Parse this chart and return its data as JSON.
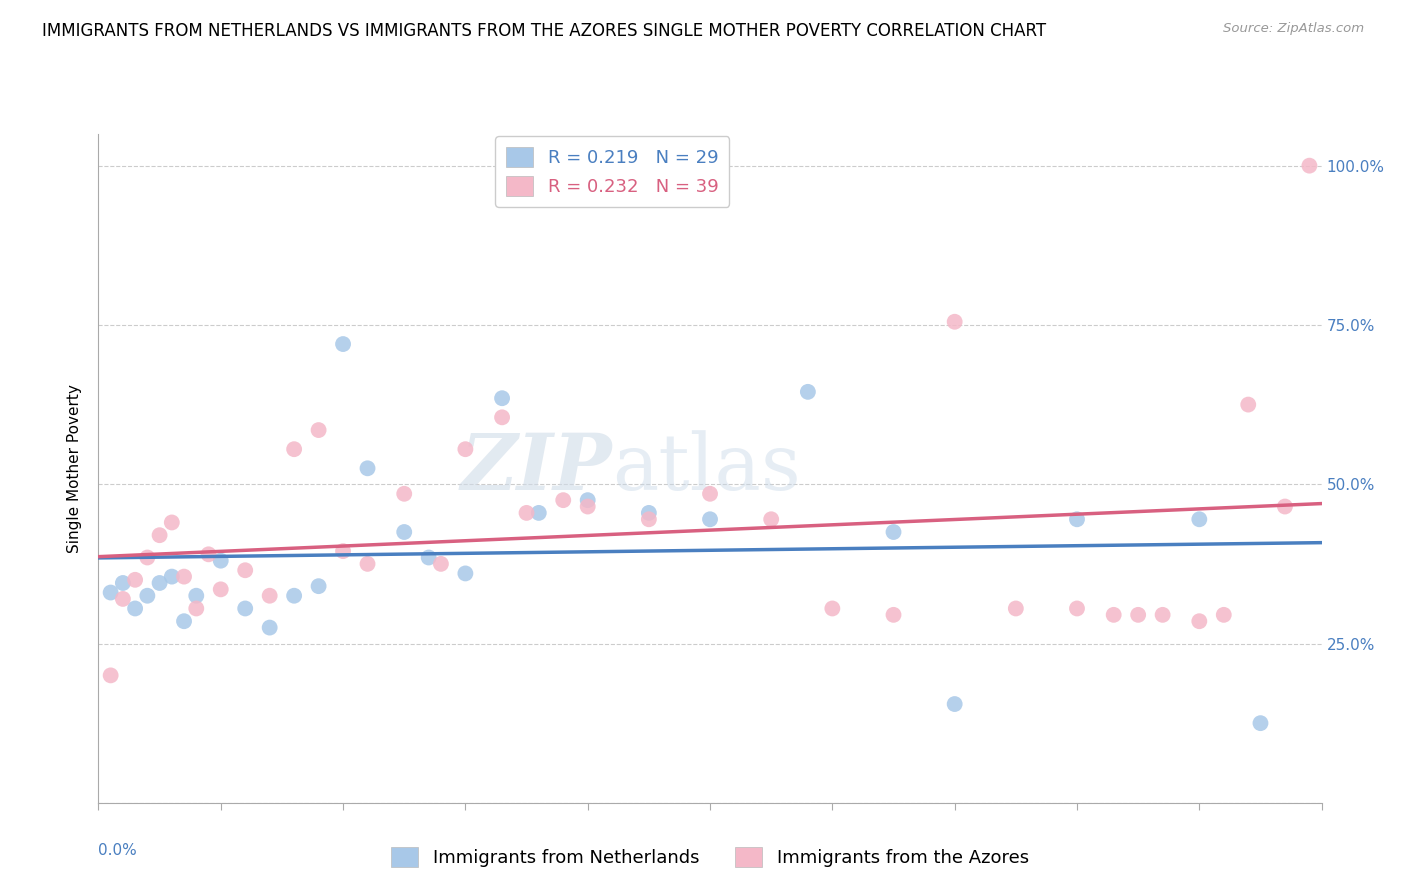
{
  "title": "IMMIGRANTS FROM NETHERLANDS VS IMMIGRANTS FROM THE AZORES SINGLE MOTHER POVERTY CORRELATION CHART",
  "source": "Source: ZipAtlas.com",
  "ylabel": "Single Mother Poverty",
  "legend_netherlands": "Immigrants from Netherlands",
  "legend_azores": "Immigrants from the Azores",
  "R_netherlands": 0.219,
  "N_netherlands": 29,
  "R_azores": 0.232,
  "N_azores": 39,
  "color_netherlands": "#a8c8e8",
  "color_azores": "#f4b8c8",
  "line_color_netherlands": "#4a7fc0",
  "line_color_azores": "#d86080",
  "watermark_zip": "ZIP",
  "watermark_atlas": "atlas",
  "netherlands_x": [
    0.001,
    0.002,
    0.003,
    0.004,
    0.005,
    0.006,
    0.007,
    0.008,
    0.01,
    0.012,
    0.014,
    0.016,
    0.018,
    0.02,
    0.022,
    0.025,
    0.027,
    0.03,
    0.033,
    0.036,
    0.04,
    0.045,
    0.05,
    0.058,
    0.065,
    0.07,
    0.08,
    0.09,
    0.095
  ],
  "netherlands_y": [
    0.33,
    0.345,
    0.305,
    0.325,
    0.345,
    0.355,
    0.285,
    0.325,
    0.38,
    0.305,
    0.275,
    0.325,
    0.34,
    0.72,
    0.525,
    0.425,
    0.385,
    0.36,
    0.635,
    0.455,
    0.475,
    0.455,
    0.445,
    0.645,
    0.425,
    0.155,
    0.445,
    0.445,
    0.125
  ],
  "azores_x": [
    0.001,
    0.002,
    0.003,
    0.004,
    0.005,
    0.006,
    0.007,
    0.008,
    0.009,
    0.01,
    0.012,
    0.014,
    0.016,
    0.018,
    0.02,
    0.022,
    0.025,
    0.028,
    0.03,
    0.033,
    0.035,
    0.038,
    0.04,
    0.045,
    0.05,
    0.055,
    0.06,
    0.065,
    0.07,
    0.075,
    0.08,
    0.083,
    0.085,
    0.087,
    0.09,
    0.092,
    0.094,
    0.097,
    0.099
  ],
  "azores_y": [
    0.2,
    0.32,
    0.35,
    0.385,
    0.42,
    0.44,
    0.355,
    0.305,
    0.39,
    0.335,
    0.365,
    0.325,
    0.555,
    0.585,
    0.395,
    0.375,
    0.485,
    0.375,
    0.555,
    0.605,
    0.455,
    0.475,
    0.465,
    0.445,
    0.485,
    0.445,
    0.305,
    0.295,
    0.755,
    0.305,
    0.305,
    0.295,
    0.295,
    0.295,
    0.285,
    0.295,
    0.625,
    0.465,
    1.0
  ],
  "xlim": [
    0.0,
    0.1
  ],
  "ylim": [
    0.0,
    1.05
  ],
  "yticks": [
    0.0,
    0.25,
    0.5,
    0.75,
    1.0
  ],
  "ytick_labels": [
    "",
    "25.0%",
    "50.0%",
    "75.0%",
    "100.0%"
  ],
  "title_fontsize": 12,
  "axis_label_fontsize": 11,
  "tick_fontsize": 11,
  "legend_fontsize": 13,
  "marker_size": 130,
  "background_color": "#ffffff",
  "grid_color": "#cccccc"
}
